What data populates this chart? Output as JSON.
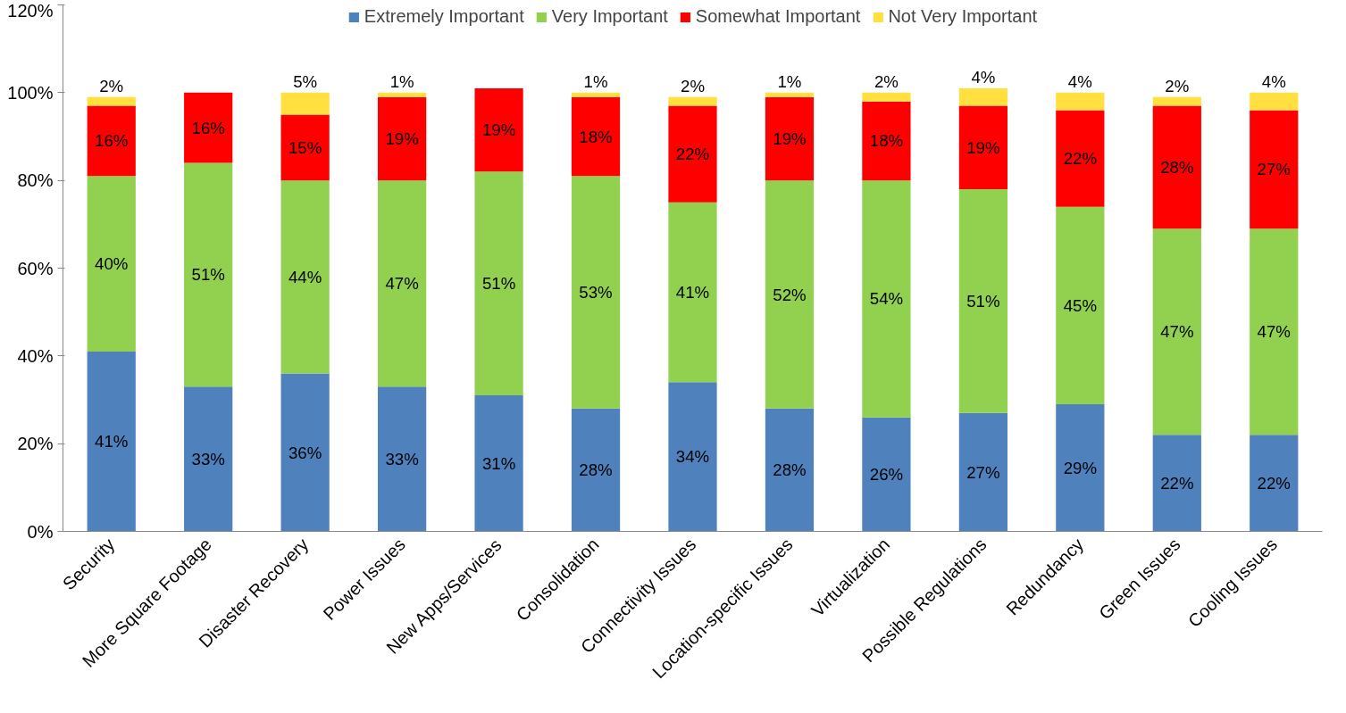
{
  "chart_data": {
    "type": "bar",
    "stacked": true,
    "grid": false,
    "legend": "top",
    "categories": [
      "Security",
      "More Square Footage",
      "Disaster Recovery",
      "Power Issues",
      "New Apps/Services",
      "Consolidation",
      "Connectivity Issues",
      "Location-specific Issues",
      "Virtualization",
      "Possible Regulations",
      "Redundancy",
      "Green Issues",
      "Cooling Issues"
    ],
    "ylim": [
      0,
      120
    ],
    "yticks": [
      {
        "value": 0,
        "label": "0%"
      },
      {
        "value": 20,
        "label": "20%"
      },
      {
        "value": 40,
        "label": "40%"
      },
      {
        "value": 60,
        "label": "60%"
      },
      {
        "value": 80,
        "label": "80%"
      },
      {
        "value": 100,
        "label": "100%"
      },
      {
        "value": 120,
        "label": "120%"
      }
    ],
    "series": [
      {
        "name": "Extremely Important",
        "color": "#4f81bd",
        "values": [
          41,
          33,
          36,
          33,
          31,
          28,
          34,
          28,
          26,
          27,
          29,
          22,
          22
        ],
        "value_labels": [
          "41%",
          "33%",
          "36%",
          "33%",
          "31%",
          "28%",
          "34%",
          "28%",
          "26%",
          "27%",
          "29%",
          "22%",
          "22%"
        ]
      },
      {
        "name": "Very Important",
        "color": "#92d050",
        "values": [
          40,
          51,
          44,
          47,
          51,
          53,
          41,
          52,
          54,
          51,
          45,
          47,
          47
        ],
        "value_labels": [
          "40%",
          "51%",
          "44%",
          "47%",
          "51%",
          "53%",
          "41%",
          "52%",
          "54%",
          "51%",
          "45%",
          "47%",
          "47%"
        ]
      },
      {
        "name": "Somewhat Important",
        "color": "#ff0000",
        "values": [
          16,
          16,
          15,
          19,
          19,
          18,
          22,
          19,
          18,
          19,
          22,
          28,
          27
        ],
        "value_labels": [
          "16%",
          "16%",
          "15%",
          "19%",
          "19%",
          "18%",
          "22%",
          "19%",
          "18%",
          "19%",
          "22%",
          "28%",
          "27%"
        ]
      },
      {
        "name": "Not Very Important",
        "color": "#ffe03f",
        "values": [
          2,
          null,
          5,
          1,
          null,
          1,
          2,
          1,
          2,
          4,
          4,
          2,
          4
        ],
        "value_labels": [
          "2%",
          null,
          "5%",
          "1%",
          null,
          "1%",
          "2%",
          "1%",
          "2%",
          "4%",
          "4%",
          "2%",
          "4%"
        ]
      }
    ]
  }
}
